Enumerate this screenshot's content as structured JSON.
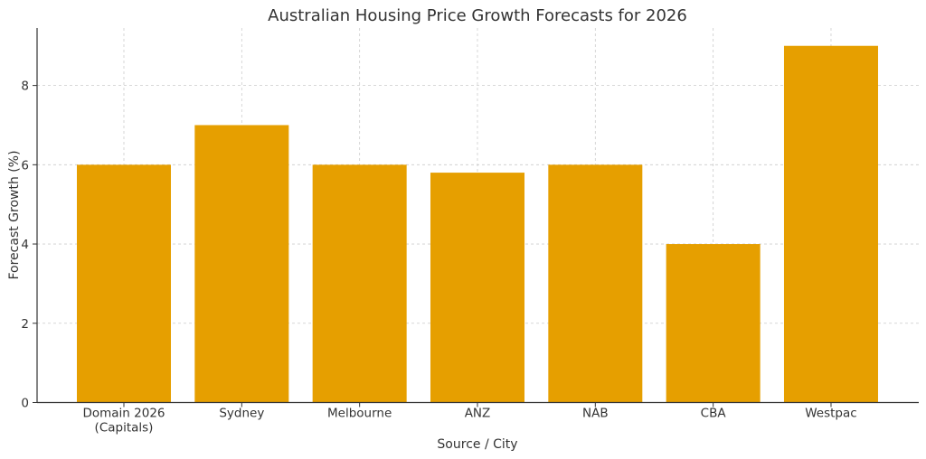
{
  "chart_data": {
    "type": "bar",
    "title": "Australian Housing Price Growth Forecasts for 2026",
    "xlabel": "Source / City",
    "ylabel": "Forecast Growth (%)",
    "categories": [
      [
        "Domain 2026",
        "(Capitals)"
      ],
      [
        "Sydney"
      ],
      [
        "Melbourne"
      ],
      [
        "ANZ"
      ],
      [
        "NAB"
      ],
      [
        "CBA"
      ],
      [
        "Westpac"
      ]
    ],
    "values": [
      6,
      7,
      6,
      5.8,
      6,
      4,
      9
    ],
    "ylim": [
      0,
      9.45
    ],
    "yticks": [
      0,
      2,
      4,
      6,
      8
    ],
    "grid": true,
    "bar_color": "#E69F00"
  }
}
